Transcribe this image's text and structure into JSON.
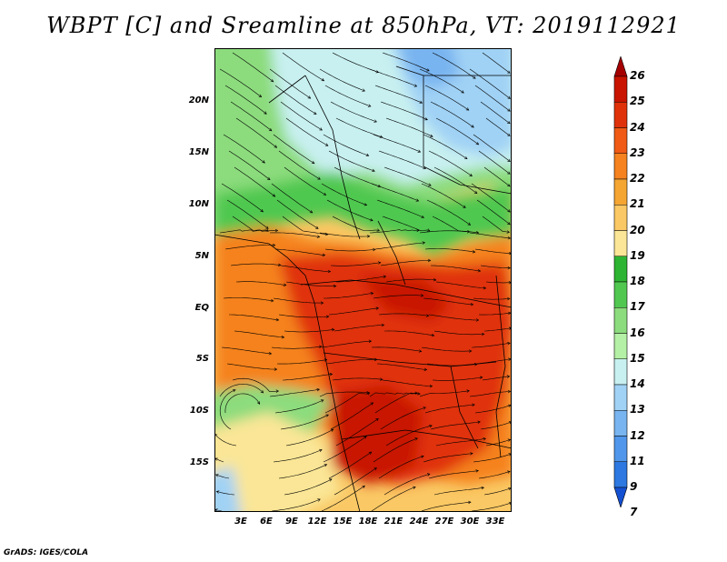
{
  "title": "WBPT [C] and Sreamline at 850hPa, VT: 2019112921",
  "footer": "GrADS: IGES/COLA",
  "axes": {
    "y_ticks": [
      "20N",
      "15N",
      "10N",
      "5N",
      "EQ",
      "5S",
      "10S",
      "15S"
    ],
    "x_ticks": [
      "3E",
      "6E",
      "9E",
      "12E",
      "15E",
      "18E",
      "21E",
      "24E",
      "27E",
      "30E",
      "33E"
    ]
  },
  "colorbar": {
    "labels": [
      "26",
      "25",
      "24",
      "23",
      "22",
      "21",
      "20",
      "19",
      "18",
      "17",
      "16",
      "15",
      "14",
      "13",
      "12",
      "11",
      "9",
      "7"
    ],
    "colors": [
      "#a50000",
      "#c81400",
      "#e0320a",
      "#f05a14",
      "#f5821e",
      "#f5a532",
      "#fac864",
      "#fae696",
      "#2db432",
      "#50c850",
      "#8cdc7d",
      "#b4f0a5",
      "#c8f0f0",
      "#a0d2f5",
      "#78b4f0",
      "#5096eb",
      "#2d78e1",
      "#1450d2"
    ]
  },
  "map": {
    "lat_range": [
      -20,
      24
    ],
    "lon_range": [
      0,
      35
    ],
    "field": "wet-bulb potential temperature",
    "overlay": "streamlines"
  }
}
